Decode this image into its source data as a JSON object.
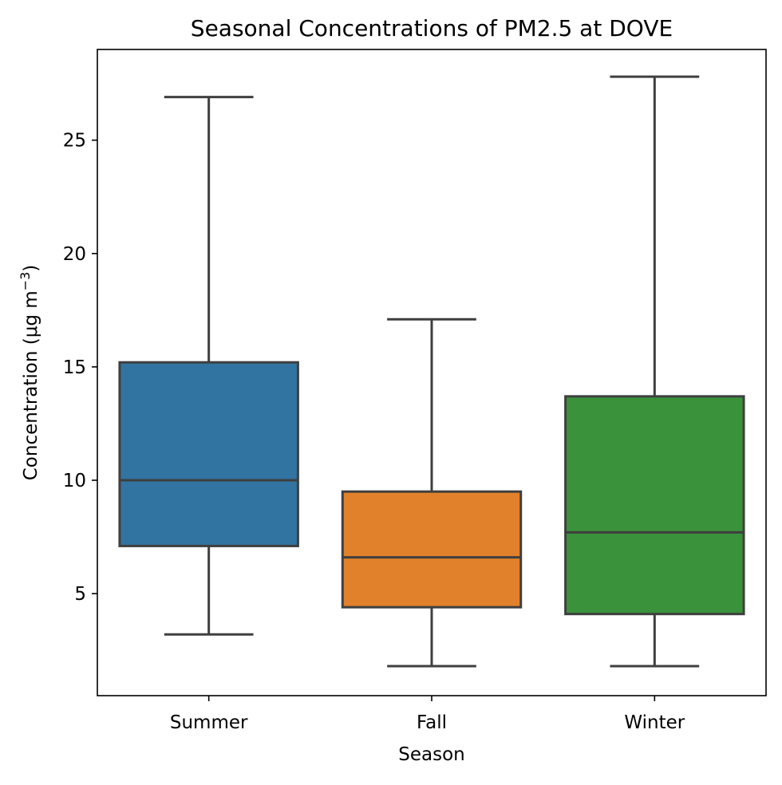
{
  "chart_data": {
    "type": "box",
    "title": "Seasonal Concentrations of PM2.5 at DOVE",
    "xlabel": "Season",
    "ylabel_main": "Concentration (μg m",
    "ylabel_sup": "−3",
    "ylabel_tail": ")",
    "ylim": [
      0.5,
      29.0
    ],
    "yticks": [
      5,
      10,
      15,
      20,
      25
    ],
    "ytick_labels": [
      "5",
      "10",
      "15",
      "20",
      "25"
    ],
    "grid": false,
    "legend": "none",
    "categories": [
      "Summer",
      "Fall",
      "Winter"
    ],
    "boxes": [
      {
        "category": "Summer",
        "whisker_low": 3.2,
        "q1": 7.1,
        "median": 10.0,
        "q3": 15.2,
        "whisker_high": 26.9,
        "color": "#3274a1"
      },
      {
        "category": "Fall",
        "whisker_low": 1.8,
        "q1": 4.4,
        "median": 6.6,
        "q3": 9.5,
        "whisker_high": 17.1,
        "color": "#e1812c"
      },
      {
        "category": "Winter",
        "whisker_low": 1.8,
        "q1": 4.1,
        "median": 7.7,
        "q3": 13.7,
        "whisker_high": 27.8,
        "color": "#3a923a"
      }
    ],
    "line_color": "#3f3f3f"
  }
}
